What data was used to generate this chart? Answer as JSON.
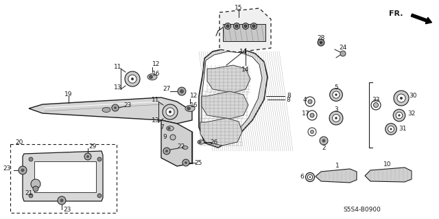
{
  "bg_color": "#ffffff",
  "line_color": "#1a1a1a",
  "diagram_code": "S5S4-B0900",
  "figsize": [
    6.4,
    3.19
  ],
  "dpi": 100
}
